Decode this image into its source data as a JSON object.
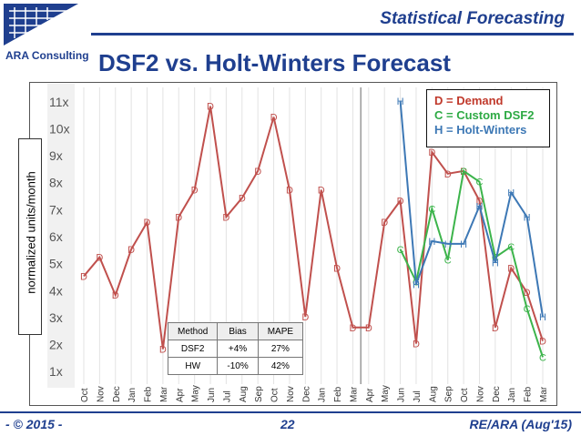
{
  "header": {
    "brand": "ARA Consulting",
    "top_title": "Statistical Forecasting",
    "main_title": "DSF2 vs. Holt-Winters Forecast"
  },
  "legend": {
    "demand": "D = Demand",
    "custom": "C = Custom DSF2",
    "hw": "H = Holt-Winters"
  },
  "stats_table": {
    "headers": [
      "Method",
      "Bias",
      "MAPE"
    ],
    "rows": [
      [
        "DSF2",
        "+4%",
        "27%"
      ],
      [
        "HW",
        "-10%",
        "42%"
      ]
    ]
  },
  "footer": {
    "left": "- © 2015 -",
    "center": "22",
    "right": "RE/ARA (Aug'15)"
  },
  "colors": {
    "demand": "#c0504d",
    "custom": "#3cb44b",
    "hw": "#3d78b5",
    "brand": "#1f3f8f"
  },
  "chart_data": {
    "type": "line",
    "title": "DSF2 vs. Holt-Winters Forecast",
    "xlabel": "",
    "ylabel": "normalized units/month",
    "ylim": [
      0.5,
      11.5
    ],
    "yticks": [
      "1x",
      "2x",
      "3x",
      "4x",
      "5x",
      "6x",
      "7x",
      "8x",
      "9x",
      "10x",
      "11x"
    ],
    "categories": [
      "Oct",
      "Nov",
      "Dec",
      "Jan",
      "Feb",
      "Mar",
      "Apr",
      "May",
      "Jun",
      "Jul",
      "Aug",
      "Sep",
      "Oct",
      "Nov",
      "Dec",
      "Jan",
      "Feb",
      "Mar",
      "Apr",
      "May",
      "Jun",
      "Jul",
      "Aug",
      "Sep",
      "Oct",
      "Nov",
      "Dec",
      "Jan",
      "Feb",
      "Mar"
    ],
    "divider_after_index": 17,
    "series": [
      {
        "name": "D = Demand",
        "marker": "D",
        "color": "#c0504d",
        "values": [
          4.5,
          5.2,
          3.8,
          5.5,
          6.5,
          1.8,
          6.7,
          7.7,
          10.8,
          6.7,
          7.4,
          8.4,
          10.4,
          7.7,
          3.0,
          7.7,
          4.8,
          2.6,
          2.6,
          6.5,
          7.3,
          2.0,
          9.1,
          8.3,
          8.4,
          7.3,
          2.6,
          4.8,
          3.9,
          2.1
        ]
      },
      {
        "name": "C = Custom DSF2",
        "marker": "C",
        "color": "#3cb44b",
        "values": [
          null,
          null,
          null,
          null,
          null,
          null,
          null,
          null,
          null,
          null,
          null,
          null,
          null,
          null,
          null,
          null,
          null,
          null,
          null,
          null,
          5.5,
          4.3,
          7.0,
          5.1,
          8.4,
          8.0,
          5.2,
          5.6,
          3.3,
          1.5
        ]
      },
      {
        "name": "H = Holt-Winters",
        "marker": "H",
        "color": "#3d78b5",
        "values": [
          null,
          null,
          null,
          null,
          null,
          null,
          null,
          null,
          null,
          null,
          null,
          null,
          null,
          null,
          null,
          null,
          null,
          null,
          null,
          null,
          11.0,
          4.2,
          5.8,
          5.7,
          5.7,
          7.1,
          5.0,
          7.6,
          6.7,
          3.0
        ]
      }
    ]
  }
}
